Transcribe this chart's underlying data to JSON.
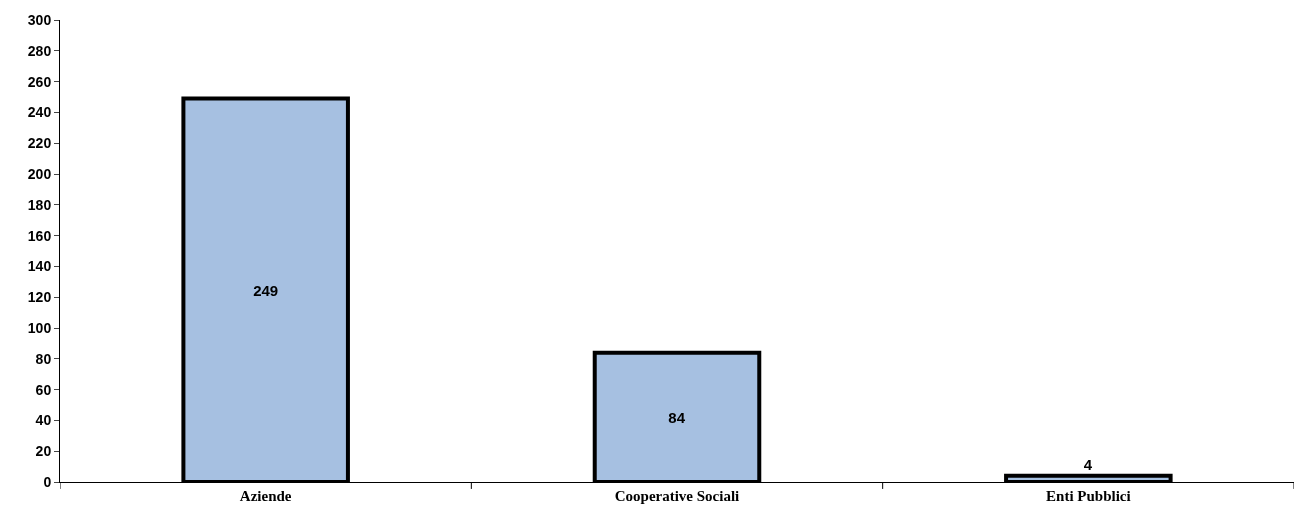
{
  "chart_data": {
    "type": "bar",
    "categories": [
      "Aziende",
      "Cooperative Sociali",
      "Enti Pubblici"
    ],
    "values": [
      249,
      84,
      4
    ],
    "color": "#a6c0e1",
    "ylim": [
      0,
      300
    ],
    "yticks": [
      0,
      20,
      40,
      60,
      80,
      100,
      120,
      140,
      160,
      180,
      200,
      220,
      240,
      260,
      280,
      300
    ],
    "data_labels": true
  }
}
